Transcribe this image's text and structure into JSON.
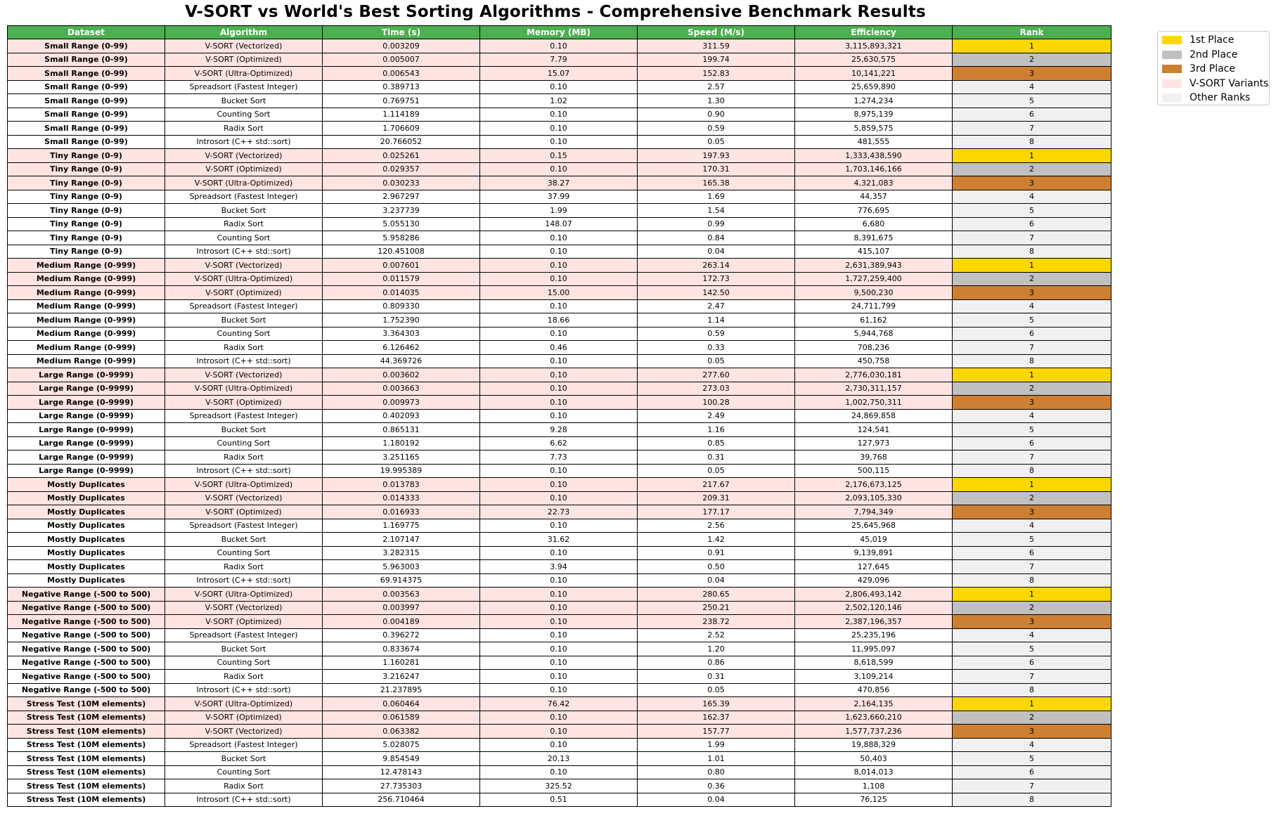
{
  "chart_data": {
    "type": "table",
    "title": "V-SORT vs World's Best Sorting Algorithms - Comprehensive Benchmark Results",
    "columns": [
      "Dataset",
      "Algorithm",
      "Time (s)",
      "Memory (MB)",
      "Speed (M/s)",
      "Efficiency",
      "Rank"
    ],
    "rows": [
      [
        "Small Range (0-99)",
        "V-SORT (Vectorized)",
        "0.003209",
        "0.10",
        "311.59",
        "3,115,893,321",
        "1"
      ],
      [
        "Small Range (0-99)",
        "V-SORT (Optimized)",
        "0.005007",
        "7.79",
        "199.74",
        "25,630,575",
        "2"
      ],
      [
        "Small Range (0-99)",
        "V-SORT (Ultra-Optimized)",
        "0.006543",
        "15.07",
        "152.83",
        "10,141,221",
        "3"
      ],
      [
        "Small Range (0-99)",
        "Spreadsort (Fastest Integer)",
        "0.389713",
        "0.10",
        "2.57",
        "25,659,890",
        "4"
      ],
      [
        "Small Range (0-99)",
        "Bucket Sort",
        "0.769751",
        "1.02",
        "1.30",
        "1,274,234",
        "5"
      ],
      [
        "Small Range (0-99)",
        "Counting Sort",
        "1.114189",
        "0.10",
        "0.90",
        "8,975,139",
        "6"
      ],
      [
        "Small Range (0-99)",
        "Radix Sort",
        "1.706609",
        "0.10",
        "0.59",
        "5,859,575",
        "7"
      ],
      [
        "Small Range (0-99)",
        "Introsort (C++ std::sort)",
        "20.766052",
        "0.10",
        "0.05",
        "481,555",
        "8"
      ],
      [
        "Tiny Range (0-9)",
        "V-SORT (Vectorized)",
        "0.025261",
        "0.15",
        "197.93",
        "1,333,438,590",
        "1"
      ],
      [
        "Tiny Range (0-9)",
        "V-SORT (Optimized)",
        "0.029357",
        "0.10",
        "170.31",
        "1,703,146,166",
        "2"
      ],
      [
        "Tiny Range (0-9)",
        "V-SORT (Ultra-Optimized)",
        "0.030233",
        "38.27",
        "165.38",
        "4,321,083",
        "3"
      ],
      [
        "Tiny Range (0-9)",
        "Spreadsort (Fastest Integer)",
        "2.967297",
        "37.99",
        "1.69",
        "44,357",
        "4"
      ],
      [
        "Tiny Range (0-9)",
        "Bucket Sort",
        "3.237739",
        "1.99",
        "1.54",
        "776,695",
        "5"
      ],
      [
        "Tiny Range (0-9)",
        "Radix Sort",
        "5.055130",
        "148.07",
        "0.99",
        "6,680",
        "6"
      ],
      [
        "Tiny Range (0-9)",
        "Counting Sort",
        "5.958286",
        "0.10",
        "0.84",
        "8,391,675",
        "7"
      ],
      [
        "Tiny Range (0-9)",
        "Introsort (C++ std::sort)",
        "120.451008",
        "0.10",
        "0.04",
        "415,107",
        "8"
      ],
      [
        "Medium Range (0-999)",
        "V-SORT (Vectorized)",
        "0.007601",
        "0.10",
        "263.14",
        "2,631,389,943",
        "1"
      ],
      [
        "Medium Range (0-999)",
        "V-SORT (Ultra-Optimized)",
        "0.011579",
        "0.10",
        "172.73",
        "1,727,259,400",
        "2"
      ],
      [
        "Medium Range (0-999)",
        "V-SORT (Optimized)",
        "0.014035",
        "15.00",
        "142.50",
        "9,500,230",
        "3"
      ],
      [
        "Medium Range (0-999)",
        "Spreadsort (Fastest Integer)",
        "0.809330",
        "0.10",
        "2.47",
        "24,711,799",
        "4"
      ],
      [
        "Medium Range (0-999)",
        "Bucket Sort",
        "1.752390",
        "18.66",
        "1.14",
        "61,162",
        "5"
      ],
      [
        "Medium Range (0-999)",
        "Counting Sort",
        "3.364303",
        "0.10",
        "0.59",
        "5,944,768",
        "6"
      ],
      [
        "Medium Range (0-999)",
        "Radix Sort",
        "6.126462",
        "0.46",
        "0.33",
        "708,236",
        "7"
      ],
      [
        "Medium Range (0-999)",
        "Introsort (C++ std::sort)",
        "44.369726",
        "0.10",
        "0.05",
        "450,758",
        "8"
      ],
      [
        "Large Range (0-9999)",
        "V-SORT (Vectorized)",
        "0.003602",
        "0.10",
        "277.60",
        "2,776,030,181",
        "1"
      ],
      [
        "Large Range (0-9999)",
        "V-SORT (Ultra-Optimized)",
        "0.003663",
        "0.10",
        "273.03",
        "2,730,311,157",
        "2"
      ],
      [
        "Large Range (0-9999)",
        "V-SORT (Optimized)",
        "0.009973",
        "0.10",
        "100.28",
        "1,002,750,311",
        "3"
      ],
      [
        "Large Range (0-9999)",
        "Spreadsort (Fastest Integer)",
        "0.402093",
        "0.10",
        "2.49",
        "24,869,858",
        "4"
      ],
      [
        "Large Range (0-9999)",
        "Bucket Sort",
        "0.865131",
        "9.28",
        "1.16",
        "124,541",
        "5"
      ],
      [
        "Large Range (0-9999)",
        "Counting Sort",
        "1.180192",
        "6.62",
        "0.85",
        "127,973",
        "6"
      ],
      [
        "Large Range (0-9999)",
        "Radix Sort",
        "3.251165",
        "7.73",
        "0.31",
        "39,768",
        "7"
      ],
      [
        "Large Range (0-9999)",
        "Introsort (C++ std::sort)",
        "19.995389",
        "0.10",
        "0.05",
        "500,115",
        "8"
      ],
      [
        "Mostly Duplicates",
        "V-SORT (Ultra-Optimized)",
        "0.013783",
        "0.10",
        "217.67",
        "2,176,673,125",
        "1"
      ],
      [
        "Mostly Duplicates",
        "V-SORT (Vectorized)",
        "0.014333",
        "0.10",
        "209.31",
        "2,093,105,330",
        "2"
      ],
      [
        "Mostly Duplicates",
        "V-SORT (Optimized)",
        "0.016933",
        "22.73",
        "177.17",
        "7,794,349",
        "3"
      ],
      [
        "Mostly Duplicates",
        "Spreadsort (Fastest Integer)",
        "1.169775",
        "0.10",
        "2.56",
        "25,645,968",
        "4"
      ],
      [
        "Mostly Duplicates",
        "Bucket Sort",
        "2.107147",
        "31.62",
        "1.42",
        "45,019",
        "5"
      ],
      [
        "Mostly Duplicates",
        "Counting Sort",
        "3.282315",
        "0.10",
        "0.91",
        "9,139,891",
        "6"
      ],
      [
        "Mostly Duplicates",
        "Radix Sort",
        "5.963003",
        "3.94",
        "0.50",
        "127,645",
        "7"
      ],
      [
        "Mostly Duplicates",
        "Introsort (C++ std::sort)",
        "69.914375",
        "0.10",
        "0.04",
        "429,096",
        "8"
      ],
      [
        "Negative Range (-500 to 500)",
        "V-SORT (Ultra-Optimized)",
        "0.003563",
        "0.10",
        "280.65",
        "2,806,493,142",
        "1"
      ],
      [
        "Negative Range (-500 to 500)",
        "V-SORT (Vectorized)",
        "0.003997",
        "0.10",
        "250.21",
        "2,502,120,146",
        "2"
      ],
      [
        "Negative Range (-500 to 500)",
        "V-SORT (Optimized)",
        "0.004189",
        "0.10",
        "238.72",
        "2,387,196,357",
        "3"
      ],
      [
        "Negative Range (-500 to 500)",
        "Spreadsort (Fastest Integer)",
        "0.396272",
        "0.10",
        "2.52",
        "25,235,196",
        "4"
      ],
      [
        "Negative Range (-500 to 500)",
        "Bucket Sort",
        "0.833674",
        "0.10",
        "1.20",
        "11,995,097",
        "5"
      ],
      [
        "Negative Range (-500 to 500)",
        "Counting Sort",
        "1.160281",
        "0.10",
        "0.86",
        "8,618,599",
        "6"
      ],
      [
        "Negative Range (-500 to 500)",
        "Radix Sort",
        "3.216247",
        "0.10",
        "0.31",
        "3,109,214",
        "7"
      ],
      [
        "Negative Range (-500 to 500)",
        "Introsort (C++ std::sort)",
        "21.237895",
        "0.10",
        "0.05",
        "470,856",
        "8"
      ],
      [
        "Stress Test (10M elements)",
        "V-SORT (Ultra-Optimized)",
        "0.060464",
        "76.42",
        "165.39",
        "2,164,135",
        "1"
      ],
      [
        "Stress Test (10M elements)",
        "V-SORT (Optimized)",
        "0.061589",
        "0.10",
        "162.37",
        "1,623,660,210",
        "2"
      ],
      [
        "Stress Test (10M elements)",
        "V-SORT (Vectorized)",
        "0.063382",
        "0.10",
        "157.77",
        "1,577,737,236",
        "3"
      ],
      [
        "Stress Test (10M elements)",
        "Spreadsort (Fastest Integer)",
        "5.028075",
        "0.10",
        "1.99",
        "19,888,329",
        "4"
      ],
      [
        "Stress Test (10M elements)",
        "Bucket Sort",
        "9.854549",
        "20.13",
        "1.01",
        "50,403",
        "5"
      ],
      [
        "Stress Test (10M elements)",
        "Counting Sort",
        "12.478143",
        "0.10",
        "0.80",
        "8,014,013",
        "6"
      ],
      [
        "Stress Test (10M elements)",
        "Radix Sort",
        "27.735303",
        "325.52",
        "0.36",
        "1,108",
        "7"
      ],
      [
        "Stress Test (10M elements)",
        "Introsort (C++ std::sort)",
        "256.710464",
        "0.51",
        "0.04",
        "76,125",
        "8"
      ]
    ],
    "legend": {
      "placement": "top-right",
      "items": [
        {
          "label": "1st Place",
          "color": "#ffd700"
        },
        {
          "label": "2nd Place",
          "color": "#c0c0c0"
        },
        {
          "label": "3rd Place",
          "color": "#cd7f32"
        },
        {
          "label": "V-SORT Variants",
          "color": "#ffe4e1"
        },
        {
          "label": "Other Ranks",
          "color": "#f0f0f0"
        }
      ]
    },
    "colors": {
      "header": "#4caf50",
      "vsort_row": "#ffe4e1",
      "other_row": "#ffffff",
      "rank_default": "#f0f0f0",
      "rank_1": "#ffd700",
      "rank_2": "#c0c0c0",
      "rank_3": "#cd7f32"
    }
  }
}
